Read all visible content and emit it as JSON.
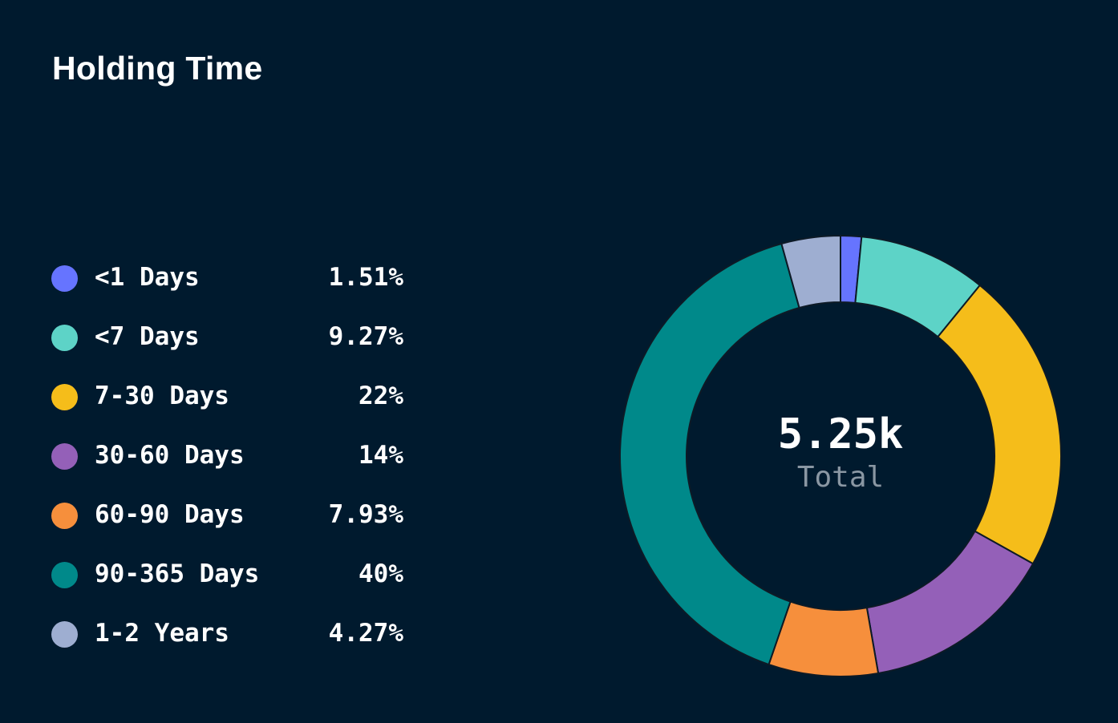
{
  "title": "Holding Time",
  "center": {
    "value": "5.25k",
    "label": "Total"
  },
  "chart_data": {
    "type": "pie",
    "title": "Holding Time",
    "subtype": "donut",
    "total_label": "Total",
    "total_value": "5.25k",
    "categories": [
      "<1 Days",
      "<7 Days",
      "7-30 Days",
      "30-60 Days",
      "60-90 Days",
      "90-365 Days",
      "1-2 Years"
    ],
    "values": [
      1.51,
      9.27,
      22,
      14,
      7.93,
      40,
      4.27
    ],
    "display_values": [
      "1.51%",
      "9.27%",
      "22%",
      "14%",
      "7.93%",
      "40%",
      "4.27%"
    ],
    "colors": [
      "#6674ff",
      "#5dd3c7",
      "#f5bd1a",
      "#9460b8",
      "#f68f3c",
      "#00898a",
      "#9eaed1"
    ],
    "legend_position": "left"
  }
}
